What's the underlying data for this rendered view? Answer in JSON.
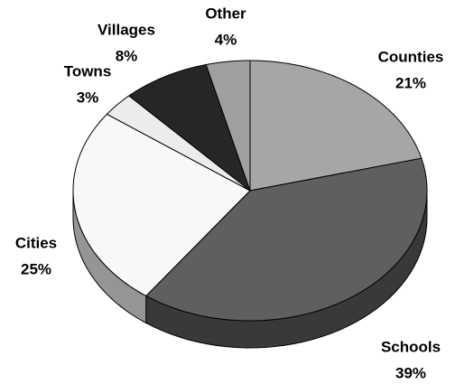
{
  "chart_data": {
    "type": "pie",
    "categories": [
      "Counties",
      "Schools",
      "Cities",
      "Towns",
      "Villages",
      "Other"
    ],
    "values": [
      21,
      39,
      25,
      3,
      8,
      4
    ],
    "value_labels": [
      "21%",
      "39%",
      "25%",
      "3%",
      "8%",
      "4%"
    ],
    "colors": [
      "#a6a6a6",
      "#5f5f5f",
      "#f8f8f8",
      "#ececec",
      "#262626",
      "#a0a0a0"
    ]
  }
}
